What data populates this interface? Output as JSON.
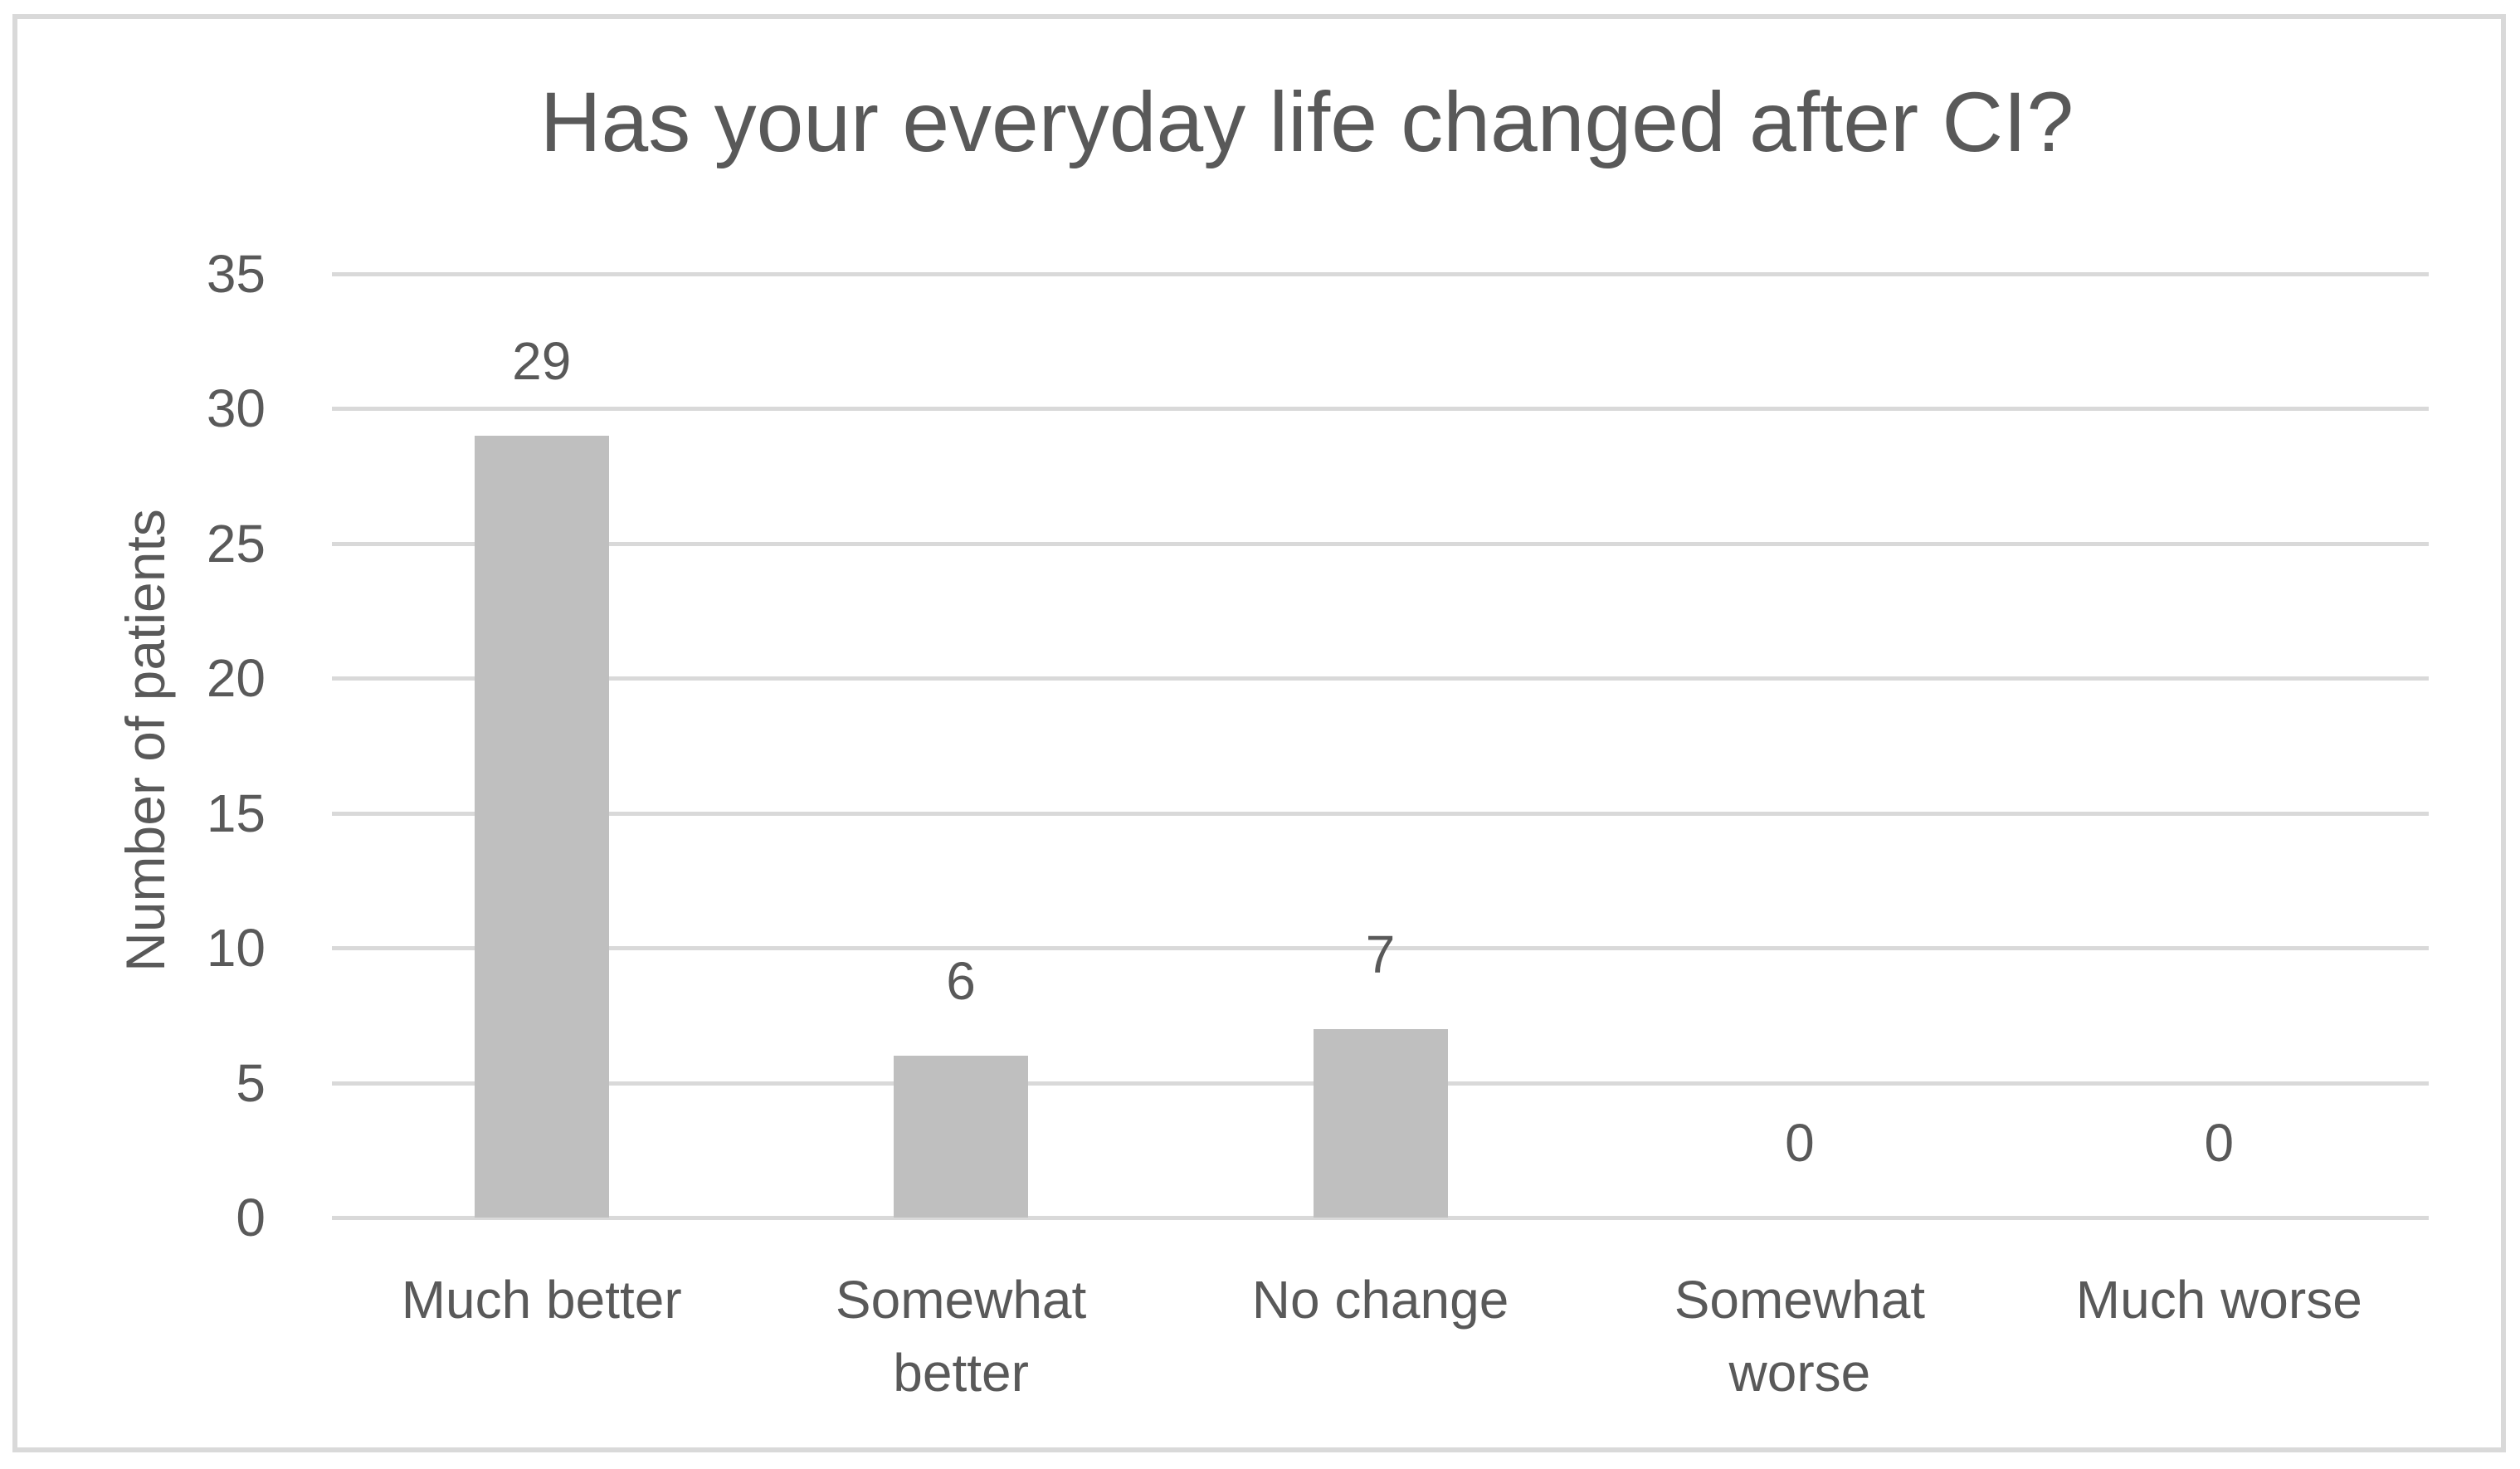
{
  "figure": {
    "background": "#ffffff",
    "frame_border_color": "#d9d9d9"
  },
  "chart_data": {
    "type": "bar",
    "title": "Has your everyday life changed after CI?",
    "categories": [
      "Much better",
      "Somewhat better",
      "No change",
      "Somewhat worse",
      "Much worse"
    ],
    "values": [
      29,
      6,
      7,
      0,
      0
    ],
    "xlabel": "",
    "ylabel": "Number of patients",
    "ylim": [
      0,
      35
    ],
    "yticks": [
      35,
      30,
      25,
      20,
      15,
      10,
      5,
      0
    ],
    "grid": "horizontal",
    "legend": "none",
    "bar_color": "#bfbfbf",
    "gridline_color": "#d9d9d9",
    "text_color": "#595959"
  }
}
